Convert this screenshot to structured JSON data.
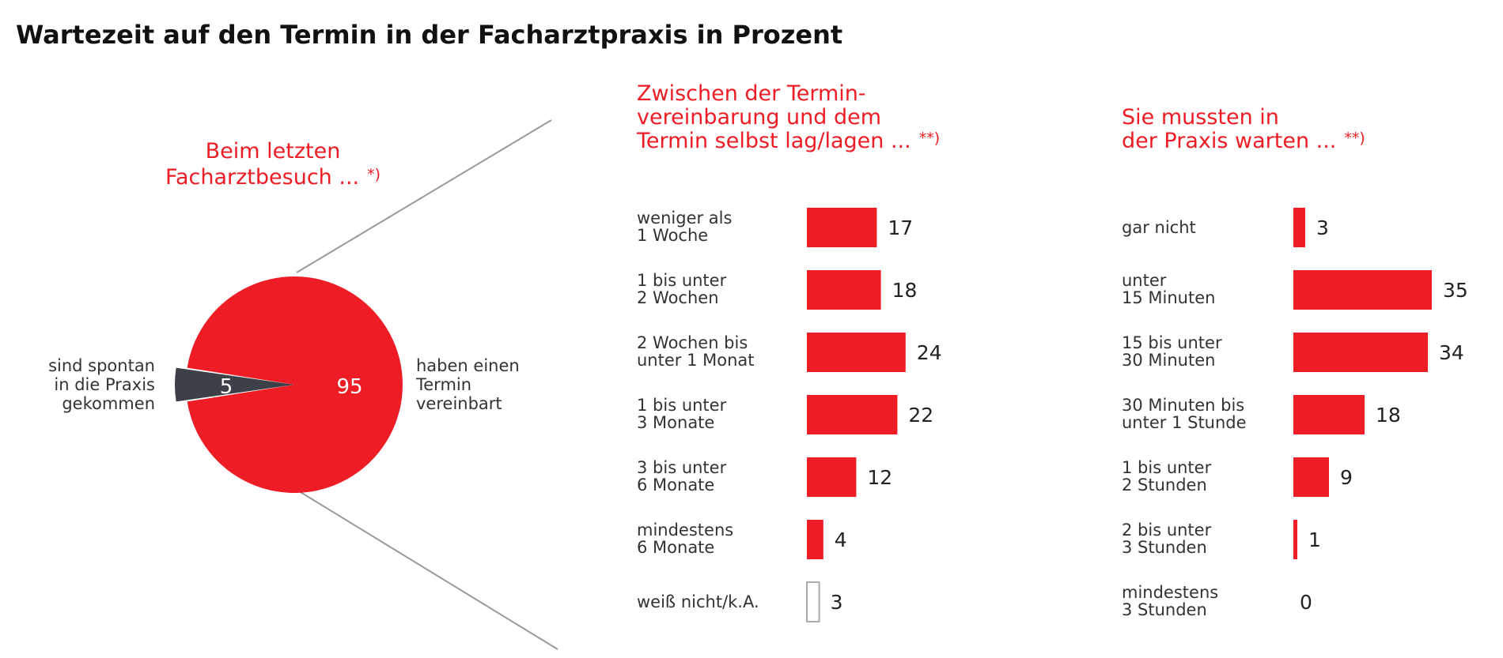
{
  "title": "Wartezeit auf den Termin in der Facharztpraxis in Prozent",
  "colors": {
    "accent": "#ee1c25",
    "slice_dark": "#3d4147",
    "outline": "#aaaaaa",
    "connector": "#9a9a9a"
  },
  "chart_data": [
    {
      "type": "pie",
      "title_lines": [
        "Beim letzten",
        "Facharztbesuch ..."
      ],
      "title_note": "*)",
      "slices": [
        {
          "label_lines": [
            "haben einen",
            "Termin",
            "vereinbart"
          ],
          "value": 95,
          "color": "#ee1c25"
        },
        {
          "label_lines": [
            "sind spontan",
            "in die Praxis",
            "gekommen"
          ],
          "value": 5,
          "color": "#3d4147"
        }
      ]
    },
    {
      "type": "bar",
      "orientation": "horizontal",
      "title_lines": [
        "Zwischen der Termin-",
        "vereinbarung und dem",
        "Termin selbst lag/lagen ..."
      ],
      "title_note": "**)",
      "categories": [
        [
          "weniger als",
          "1 Woche"
        ],
        [
          "1 bis unter",
          "2 Wochen"
        ],
        [
          "2 Wochen bis",
          "unter 1 Monat"
        ],
        [
          "1 bis unter",
          "3 Monate"
        ],
        [
          "3 bis unter",
          "6 Monate"
        ],
        [
          "mindestens",
          "6 Monate"
        ],
        [
          "weiß nicht/k.A."
        ]
      ],
      "values": [
        17,
        18,
        24,
        22,
        12,
        4,
        3
      ],
      "outlined": [
        false,
        false,
        false,
        false,
        false,
        false,
        true
      ]
    },
    {
      "type": "bar",
      "orientation": "horizontal",
      "title_lines": [
        "Sie mussten in",
        "der Praxis warten ..."
      ],
      "title_note": "**)",
      "categories": [
        [
          "gar nicht"
        ],
        [
          "unter",
          "15 Minuten"
        ],
        [
          "15 bis unter",
          "30 Minuten"
        ],
        [
          "30 Minuten bis",
          "unter 1 Stunde"
        ],
        [
          "1 bis unter",
          "2 Stunden"
        ],
        [
          "2 bis unter",
          "3 Stunden"
        ],
        [
          "mindestens",
          "3 Stunden"
        ]
      ],
      "values": [
        3,
        35,
        34,
        18,
        9,
        1,
        0
      ],
      "outlined": [
        false,
        false,
        false,
        false,
        false,
        false,
        false
      ]
    }
  ]
}
